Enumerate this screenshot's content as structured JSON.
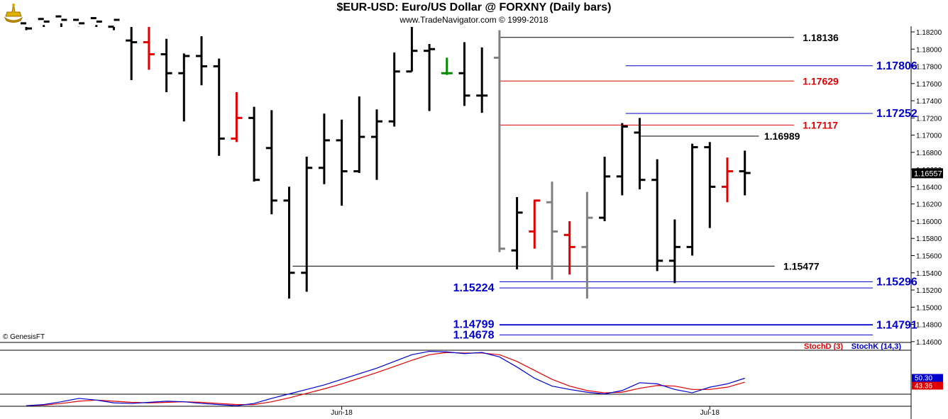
{
  "header": {
    "title": "$EUR-USD:  Euro/US Dollar @ FORXNY  (Daily bars)",
    "subtitle": "www.TradeNavigator.com © 1999-2018"
  },
  "chart_data": {
    "type": "bar",
    "symbol": "$EUR-USD",
    "price_axis": {
      "min": 1.1455,
      "max": 1.1828,
      "ticks": [
        "1.18200",
        "1.18000",
        "1.17800",
        "1.17600",
        "1.17400",
        "1.17200",
        "1.17000",
        "1.16800",
        "1.16600",
        "1.16400",
        "1.16200",
        "1.16000",
        "1.15800",
        "1.15600",
        "1.15400",
        "1.15200",
        "1.15000",
        "1.14800",
        "1.14600"
      ],
      "last_price": "1.16557"
    },
    "x_labels": [
      {
        "bar": 18,
        "label": "Jun-18"
      },
      {
        "bar": 39,
        "label": "Jul-18"
      }
    ],
    "credit": "© GenesisFT",
    "bars": [
      {
        "h": 1.184,
        "l": 1.1822,
        "o": 1.183,
        "c": 1.1824,
        "color": "black"
      },
      {
        "h": 1.184,
        "l": 1.1828,
        "o": 1.1835,
        "c": 1.1832,
        "color": "black"
      },
      {
        "h": 1.184,
        "l": 1.183,
        "o": 1.1838,
        "c": 1.1834,
        "color": "black"
      },
      {
        "h": 1.184,
        "l": 1.1826,
        "o": 1.1834,
        "c": 1.183,
        "color": "black"
      },
      {
        "h": 1.184,
        "l": 1.1828,
        "o": 1.1836,
        "c": 1.1832,
        "color": "black"
      },
      {
        "h": 1.184,
        "l": 1.1822,
        "o": 1.1826,
        "c": 1.1834,
        "color": "black"
      },
      {
        "h": 1.1828,
        "l": 1.1764,
        "o": 1.181,
        "c": 1.1808,
        "color": "black"
      },
      {
        "h": 1.1826,
        "l": 1.1776,
        "o": 1.1808,
        "c": 1.1794,
        "color": "red"
      },
      {
        "h": 1.1812,
        "l": 1.175,
        "o": 1.1794,
        "c": 1.1772,
        "color": "black"
      },
      {
        "h": 1.1795,
        "l": 1.1716,
        "o": 1.1772,
        "c": 1.1792,
        "color": "black"
      },
      {
        "h": 1.1815,
        "l": 1.1758,
        "o": 1.1792,
        "c": 1.178,
        "color": "black"
      },
      {
        "h": 1.1789,
        "l": 1.1676,
        "o": 1.178,
        "c": 1.1696,
        "color": "black"
      },
      {
        "h": 1.175,
        "l": 1.1692,
        "o": 1.1696,
        "c": 1.172,
        "color": "red"
      },
      {
        "h": 1.1733,
        "l": 1.1646,
        "o": 1.172,
        "c": 1.1648,
        "color": "black"
      },
      {
        "h": 1.1729,
        "l": 1.1608,
        "o": 1.1685,
        "c": 1.1624,
        "color": "black"
      },
      {
        "h": 1.164,
        "l": 1.151,
        "o": 1.1624,
        "c": 1.154,
        "color": "black"
      },
      {
        "h": 1.1675,
        "l": 1.1518,
        "o": 1.154,
        "c": 1.1662,
        "color": "black"
      },
      {
        "h": 1.1725,
        "l": 1.1643,
        "o": 1.1662,
        "c": 1.1694,
        "color": "black"
      },
      {
        "h": 1.1718,
        "l": 1.1618,
        "o": 1.1694,
        "c": 1.1658,
        "color": "black"
      },
      {
        "h": 1.1745,
        "l": 1.1656,
        "o": 1.1658,
        "c": 1.1698,
        "color": "black"
      },
      {
        "h": 1.173,
        "l": 1.1648,
        "o": 1.1698,
        "c": 1.1716,
        "color": "black"
      },
      {
        "h": 1.1796,
        "l": 1.171,
        "o": 1.1716,
        "c": 1.1774,
        "color": "black"
      },
      {
        "h": 1.184,
        "l": 1.1774,
        "o": 1.1774,
        "c": 1.1798,
        "color": "black"
      },
      {
        "h": 1.1806,
        "l": 1.1728,
        "o": 1.1798,
        "c": 1.18,
        "color": "black"
      },
      {
        "h": 1.179,
        "l": 1.177,
        "o": 1.1772,
        "c": 1.1772,
        "color": "green"
      },
      {
        "h": 1.1808,
        "l": 1.1734,
        "o": 1.1772,
        "c": 1.1746,
        "color": "black"
      },
      {
        "h": 1.1802,
        "l": 1.1726,
        "o": 1.1746,
        "c": 1.1746,
        "color": "black"
      },
      {
        "h": 1.1822,
        "l": 1.1564,
        "o": 1.179,
        "c": 1.1568,
        "color": "gray"
      },
      {
        "h": 1.1628,
        "l": 1.1544,
        "o": 1.1566,
        "c": 1.161,
        "color": "black"
      },
      {
        "h": 1.1625,
        "l": 1.1568,
        "o": 1.1588,
        "c": 1.1624,
        "color": "red"
      },
      {
        "h": 1.1646,
        "l": 1.1532,
        "o": 1.1622,
        "c": 1.1588,
        "color": "gray"
      },
      {
        "h": 1.16,
        "l": 1.1538,
        "o": 1.1584,
        "c": 1.157,
        "color": "red"
      },
      {
        "h": 1.1634,
        "l": 1.151,
        "o": 1.157,
        "c": 1.1604,
        "color": "gray"
      },
      {
        "h": 1.1675,
        "l": 1.16,
        "o": 1.1604,
        "c": 1.1652,
        "color": "black"
      },
      {
        "h": 1.1714,
        "l": 1.163,
        "o": 1.1652,
        "c": 1.171,
        "color": "black"
      },
      {
        "h": 1.172,
        "l": 1.1637,
        "o": 1.1703,
        "c": 1.1648,
        "color": "black"
      },
      {
        "h": 1.1672,
        "l": 1.1542,
        "o": 1.1648,
        "c": 1.1554,
        "color": "black"
      },
      {
        "h": 1.1602,
        "l": 1.1528,
        "o": 1.1554,
        "c": 1.157,
        "color": "black"
      },
      {
        "h": 1.169,
        "l": 1.156,
        "o": 1.157,
        "c": 1.1686,
        "color": "black"
      },
      {
        "h": 1.1692,
        "l": 1.1592,
        "o": 1.1686,
        "c": 1.164,
        "color": "black"
      },
      {
        "h": 1.1674,
        "l": 1.1622,
        "o": 1.164,
        "c": 1.1658,
        "color": "red"
      },
      {
        "h": 1.1682,
        "l": 1.163,
        "o": 1.1658,
        "c": 1.1656,
        "color": "black"
      }
    ],
    "levels": [
      {
        "value": "1.18136",
        "price": 1.18136,
        "color": "#000000",
        "x1bar": 27,
        "x2bar": 43.8,
        "label_side": "right",
        "label_bar": 44.3,
        "size": 14
      },
      {
        "value": "1.17806",
        "price": 1.17806,
        "color": "#0000cc",
        "x1bar": 34.2,
        "x2bar": 48.3,
        "label_side": "right",
        "label_bar": 48.5,
        "size": 16
      },
      {
        "value": "1.17629",
        "price": 1.17629,
        "color": "#e00000",
        "x1bar": 27,
        "x2bar": 43.8,
        "label_side": "right",
        "label_bar": 44.3,
        "size": 14
      },
      {
        "value": "1.17252",
        "price": 1.17252,
        "color": "#0000cc",
        "x1bar": 34.2,
        "x2bar": 48.3,
        "label_side": "right",
        "label_bar": 48.5,
        "size": 16
      },
      {
        "value": "1.17117",
        "price": 1.17117,
        "color": "#e00000",
        "x1bar": 27,
        "x2bar": 43.8,
        "label_side": "right",
        "label_bar": 44.3,
        "size": 14
      },
      {
        "value": "1.16989",
        "price": 1.16989,
        "color": "#000000",
        "x1bar": 35,
        "x2bar": 41.8,
        "label_side": "right",
        "label_bar": 42.1,
        "size": 14
      },
      {
        "value": "1.15477",
        "price": 1.15477,
        "color": "#000000",
        "x1bar": 15.2,
        "x2bar": 42.7,
        "label_side": "right",
        "label_bar": 43.2,
        "size": 14
      },
      {
        "value": "1.15296",
        "price": 1.15296,
        "color": "#0000cc",
        "x1bar": 27,
        "x2bar": 48.3,
        "label_side": "right",
        "label_bar": 48.5,
        "size": 16
      },
      {
        "value": "1.15224",
        "price": 1.15224,
        "color": "#0000cc",
        "x1bar": 27,
        "x2bar": 48.3,
        "label_side": "left",
        "label_bar": 26.7,
        "size": 16
      },
      {
        "value": "1.14799",
        "price": 1.14799,
        "color": "#0000cc",
        "x1bar": 27,
        "x2bar": 48.3,
        "label_side": "left",
        "label_bar": 26.7,
        "size": 16
      },
      {
        "value": "1.14791",
        "price": 1.14791,
        "color": "#0000cc",
        "x1bar": 27,
        "x2bar": 48.3,
        "label_side": "right",
        "label_bar": 48.5,
        "size": 16
      },
      {
        "value": "1.14678",
        "price": 1.14678,
        "color": "#0000cc",
        "x1bar": 27,
        "x2bar": 48.3,
        "label_side": "left",
        "label_bar": 26.7,
        "size": 16
      }
    ],
    "stochastic": {
      "legend": [
        {
          "name": "StochD (3)",
          "color": "#e00000"
        },
        {
          "name": "StochK (14,3)",
          "color": "#0000cc"
        }
      ],
      "k_value_label": "50.30",
      "d_value_label": "43.36",
      "k": [
        1,
        3,
        8,
        14,
        11,
        6,
        5,
        7,
        9,
        8,
        5,
        3,
        1,
        5,
        14,
        22,
        30,
        38,
        48,
        58,
        68,
        80,
        92,
        98,
        97,
        94,
        96,
        88,
        70,
        50,
        36,
        30,
        25,
        22,
        28,
        42,
        40,
        30,
        24,
        34,
        40,
        50
      ],
      "d": [
        1,
        2,
        5,
        9,
        11,
        9,
        7,
        6,
        7,
        8,
        7,
        5,
        3,
        3,
        8,
        15,
        23,
        31,
        40,
        50,
        60,
        71,
        82,
        92,
        96,
        95,
        95,
        92,
        80,
        64,
        48,
        36,
        28,
        24,
        25,
        32,
        37,
        36,
        30,
        30,
        34,
        43
      ]
    }
  }
}
